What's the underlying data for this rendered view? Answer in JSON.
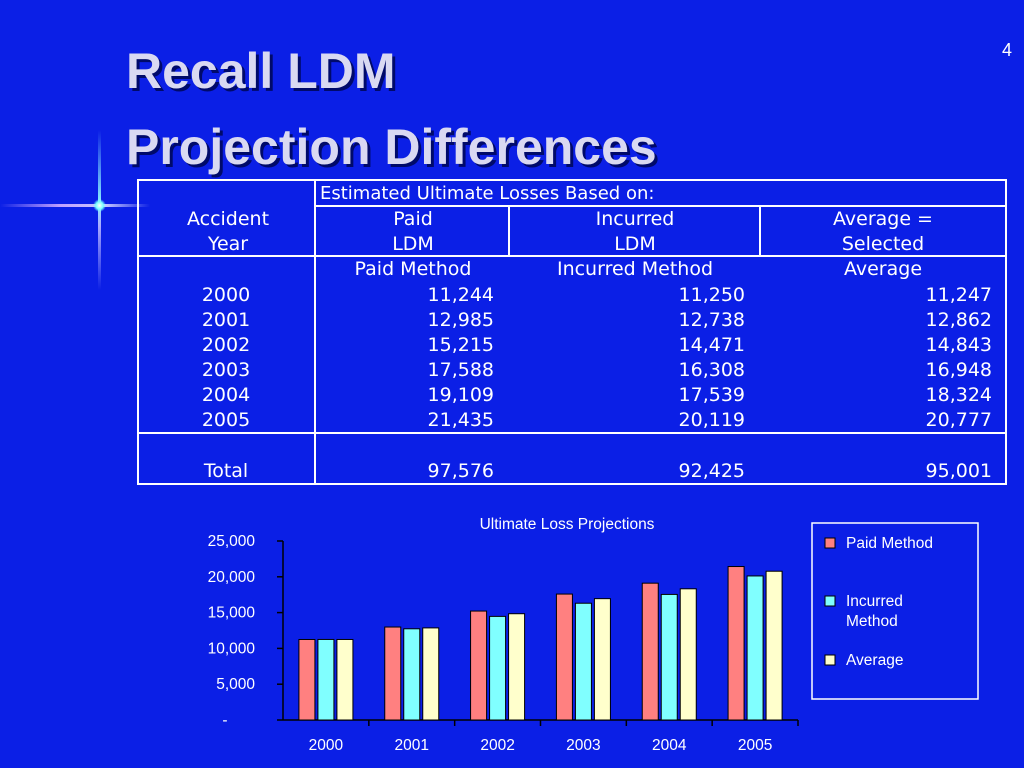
{
  "slide": {
    "title_line1": "Recall LDM",
    "title_line2": "Projection Differences",
    "number": "4"
  },
  "table": {
    "group_header": "Estimated Ultimate Losses Based on:",
    "col0_header": [
      "Accident",
      "Year"
    ],
    "col1_header": [
      "Paid",
      "LDM"
    ],
    "col2_header": [
      "Incurred",
      "LDM"
    ],
    "col3_header": [
      "Average =",
      "Selected"
    ],
    "subheaders": [
      "Paid Method",
      "Incurred Method",
      "Average"
    ],
    "rows": [
      [
        "2000",
        "11,244",
        "11,250",
        "11,247"
      ],
      [
        "2001",
        "12,985",
        "12,738",
        "12,862"
      ],
      [
        "2002",
        "15,215",
        "14,471",
        "14,843"
      ],
      [
        "2003",
        "17,588",
        "16,308",
        "16,948"
      ],
      [
        "2004",
        "19,109",
        "17,539",
        "18,324"
      ],
      [
        "2005",
        "21,435",
        "20,119",
        "20,777"
      ]
    ],
    "total_row": [
      "Total",
      "97,576",
      "92,425",
      "95,001"
    ]
  },
  "chart_data": {
    "type": "bar",
    "title": "Ultimate Loss Projections",
    "categories": [
      "2000",
      "2001",
      "2002",
      "2003",
      "2004",
      "2005"
    ],
    "series": [
      {
        "name": "Paid Method",
        "values": [
          11244,
          12985,
          15215,
          17588,
          19109,
          21435
        ],
        "color": "#ff8080"
      },
      {
        "name": "Incurred Method",
        "values": [
          11250,
          12738,
          14471,
          16308,
          17539,
          20119
        ],
        "color": "#80ffff"
      },
      {
        "name": "Average",
        "values": [
          11247,
          12862,
          14843,
          16948,
          18324,
          20777
        ],
        "color": "#ffffcc"
      }
    ],
    "yticks": [
      "-",
      "5,000",
      "10,000",
      "15,000",
      "20,000",
      "25,000"
    ],
    "ylim": [
      0,
      25000
    ],
    "legend_position": "right",
    "grid": false
  },
  "colors": {
    "background": "#0b1fe6",
    "title": "#d9d9f2",
    "lines": "#ffffff"
  }
}
